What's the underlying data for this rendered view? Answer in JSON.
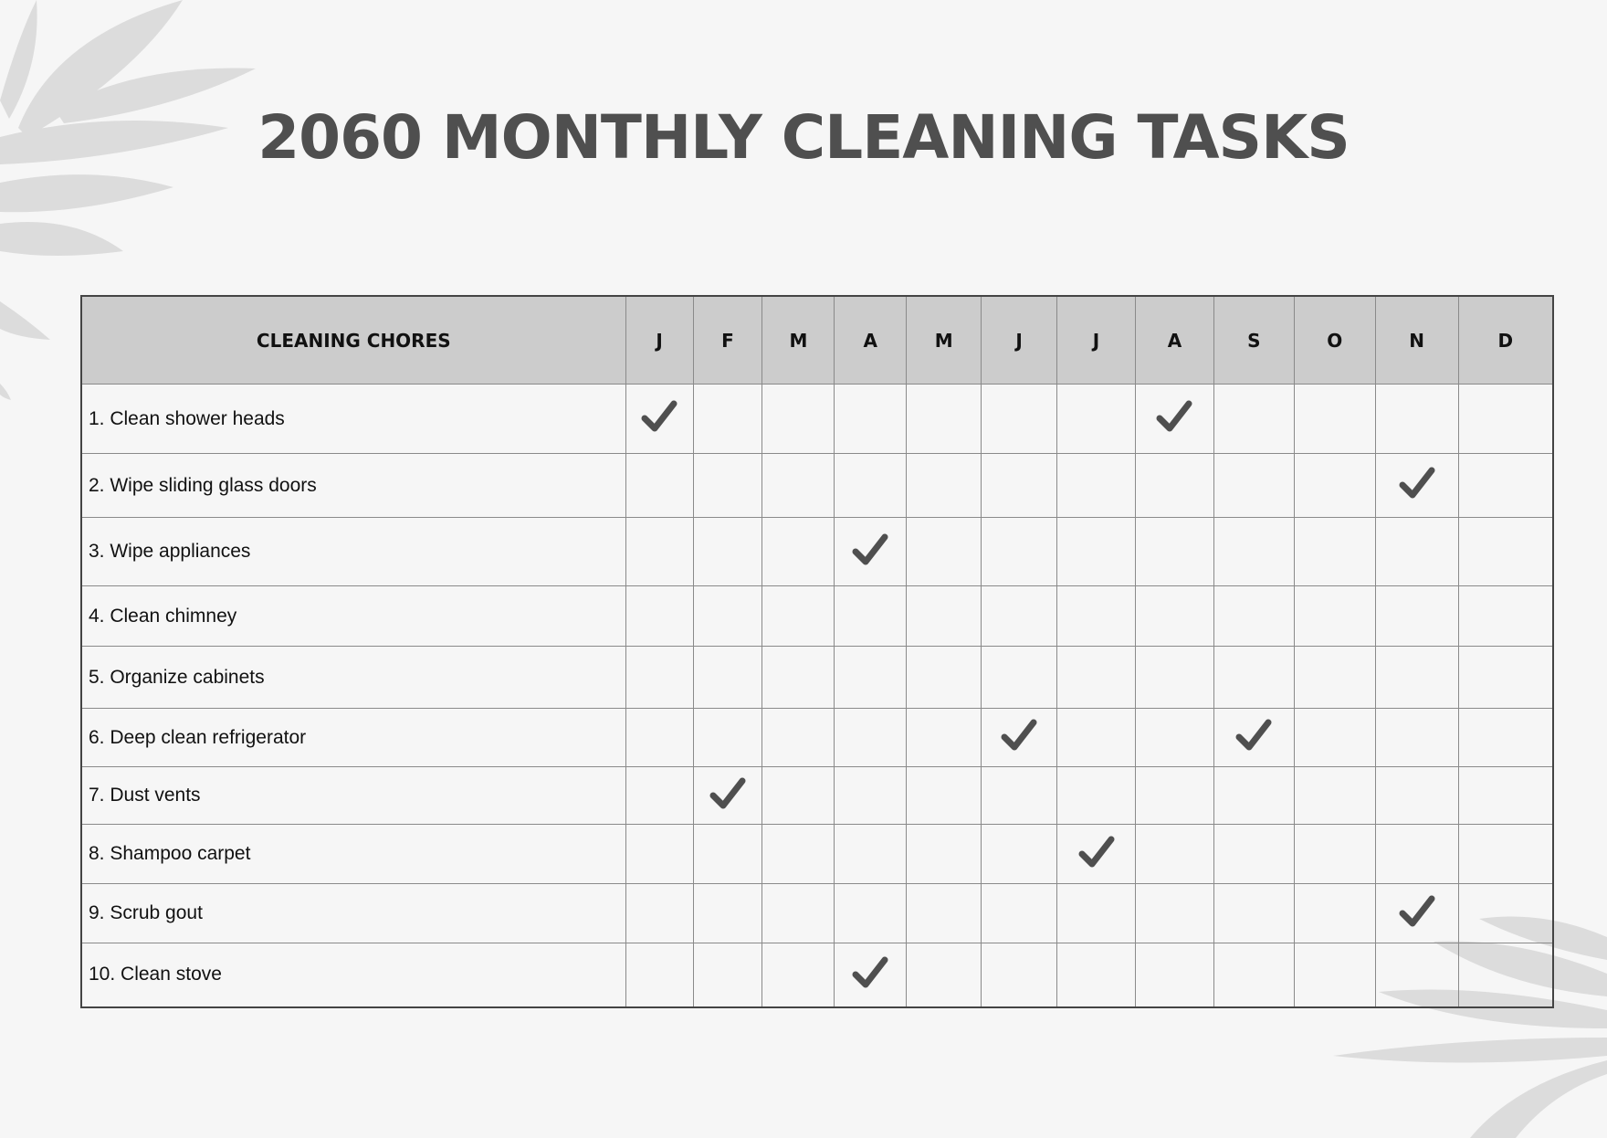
{
  "title": "2060 MONTHLY CLEANING TASKS",
  "table": {
    "chores_header": "CLEANING CHORES",
    "months": [
      "J",
      "F",
      "M",
      "A",
      "M",
      "J",
      "J",
      "A",
      "S",
      "O",
      "N",
      "D"
    ],
    "check_icon": "checkmark-icon",
    "check_color": "#4f4f4f",
    "rows": [
      {
        "label": "1. Clean shower heads",
        "checked_months": [
          0,
          7
        ]
      },
      {
        "label": "2. Wipe sliding glass doors",
        "checked_months": [
          10
        ]
      },
      {
        "label": "3. Wipe appliances",
        "checked_months": [
          3
        ]
      },
      {
        "label": "4. Clean chimney",
        "checked_months": []
      },
      {
        "label": "5. Organize cabinets",
        "checked_months": []
      },
      {
        "label": "6. Deep clean refrigerator",
        "checked_months": [
          5,
          8
        ]
      },
      {
        "label": "7. Dust vents",
        "checked_months": [
          1
        ]
      },
      {
        "label": "8. Shampoo carpet",
        "checked_months": [
          6
        ]
      },
      {
        "label": "9. Scrub gout",
        "checked_months": [
          10
        ]
      },
      {
        "label": "10. Clean stove",
        "checked_months": [
          3
        ]
      }
    ]
  }
}
